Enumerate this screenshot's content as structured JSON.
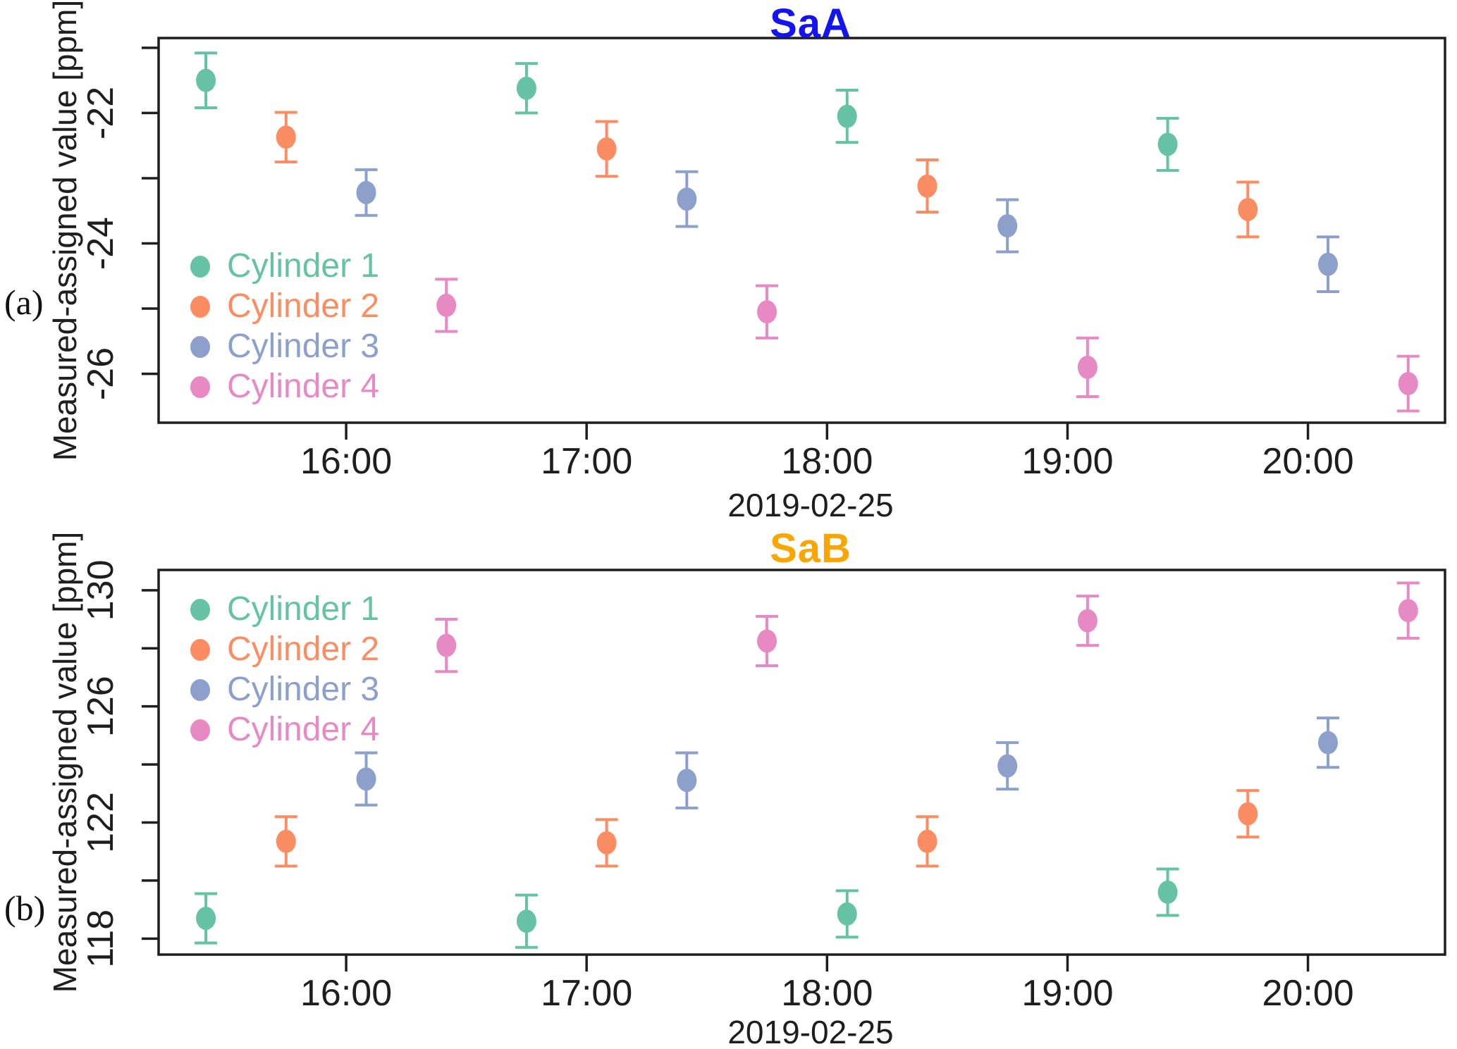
{
  "figure": {
    "background": "#ffffff",
    "axis_color": "#1e1e1e",
    "date_shown": "2019-02-25"
  },
  "chart_data": [
    {
      "type": "scatter",
      "panel_label": "(a)",
      "title": "SaA",
      "title_color": "#1414F0",
      "ylabel": "Measured-assigned value [ppm]",
      "xlabel": "2019-02-25",
      "grid": false,
      "legend_position": "middle-left",
      "xlim_hours": [
        15.22,
        20.57
      ],
      "ylim": [
        -26.75,
        -20.85
      ],
      "x_ticks": [
        {
          "hour": 16,
          "label": "16:00"
        },
        {
          "hour": 17,
          "label": "17:00"
        },
        {
          "hour": 18,
          "label": "18:00"
        },
        {
          "hour": 19,
          "label": "19:00"
        },
        {
          "hour": 20,
          "label": "20:00"
        }
      ],
      "y_ticks": [
        -26,
        -25,
        -24,
        -23,
        -22,
        -21
      ],
      "y_labeled_ticks": [
        -26,
        -24,
        -22
      ],
      "series": [
        {
          "name": "Cylinder 1",
          "color": "#66C2A5",
          "x_times": [
            "15:25",
            "16:45",
            "18:05",
            "19:25"
          ],
          "y": [
            -21.5,
            -21.62,
            -22.05,
            -22.48
          ],
          "yerr": [
            0.42,
            0.38,
            0.4,
            0.4
          ]
        },
        {
          "name": "Cylinder 2",
          "color": "#FC8D62",
          "x_times": [
            "15:45",
            "17:05",
            "18:25",
            "19:45"
          ],
          "y": [
            -22.37,
            -22.55,
            -23.12,
            -23.48
          ],
          "yerr": [
            0.38,
            0.42,
            0.4,
            0.42
          ]
        },
        {
          "name": "Cylinder 3",
          "color": "#8DA0CB",
          "x_times": [
            "16:05",
            "17:25",
            "18:45",
            "20:05"
          ],
          "y": [
            -23.22,
            -23.32,
            -23.73,
            -24.32
          ],
          "yerr": [
            0.35,
            0.42,
            0.4,
            0.42
          ]
        },
        {
          "name": "Cylinder 4",
          "color": "#E78AC3",
          "x_times": [
            "16:25",
            "17:45",
            "19:05",
            "20:25"
          ],
          "y": [
            -24.95,
            -25.05,
            -25.9,
            -26.15
          ],
          "yerr": [
            0.4,
            0.4,
            0.45,
            0.42
          ]
        }
      ]
    },
    {
      "type": "scatter",
      "panel_label": "(b)",
      "title": "SaB",
      "title_color": "#F9A602",
      "ylabel": "Measured-assigned value [ppm]",
      "xlabel": "2019-02-25",
      "grid": false,
      "legend_position": "top-left",
      "xlim_hours": [
        15.22,
        20.57
      ],
      "ylim": [
        117.45,
        130.7
      ],
      "x_ticks": [
        {
          "hour": 16,
          "label": "16:00"
        },
        {
          "hour": 17,
          "label": "17:00"
        },
        {
          "hour": 18,
          "label": "18:00"
        },
        {
          "hour": 19,
          "label": "19:00"
        },
        {
          "hour": 20,
          "label": "20:00"
        }
      ],
      "y_ticks": [
        118,
        120,
        122,
        124,
        126,
        128,
        130
      ],
      "y_labeled_ticks": [
        118,
        122,
        126,
        130
      ],
      "series": [
        {
          "name": "Cylinder 1",
          "color": "#66C2A5",
          "x_times": [
            "15:25",
            "16:45",
            "18:05",
            "19:25"
          ],
          "y": [
            118.7,
            118.6,
            118.85,
            119.6
          ],
          "yerr": [
            0.85,
            0.9,
            0.8,
            0.8
          ]
        },
        {
          "name": "Cylinder 2",
          "color": "#FC8D62",
          "x_times": [
            "15:45",
            "17:05",
            "18:25",
            "19:45"
          ],
          "y": [
            121.35,
            121.3,
            121.35,
            122.3
          ],
          "yerr": [
            0.85,
            0.8,
            0.85,
            0.8
          ]
        },
        {
          "name": "Cylinder 3",
          "color": "#8DA0CB",
          "x_times": [
            "16:05",
            "17:25",
            "18:45",
            "20:05"
          ],
          "y": [
            123.5,
            123.45,
            123.95,
            124.75
          ],
          "yerr": [
            0.9,
            0.95,
            0.8,
            0.85
          ]
        },
        {
          "name": "Cylinder 4",
          "color": "#E78AC3",
          "x_times": [
            "16:25",
            "17:45",
            "19:05",
            "20:25"
          ],
          "y": [
            128.1,
            128.25,
            128.95,
            129.3
          ],
          "yerr": [
            0.9,
            0.85,
            0.85,
            0.95
          ]
        }
      ]
    }
  ]
}
